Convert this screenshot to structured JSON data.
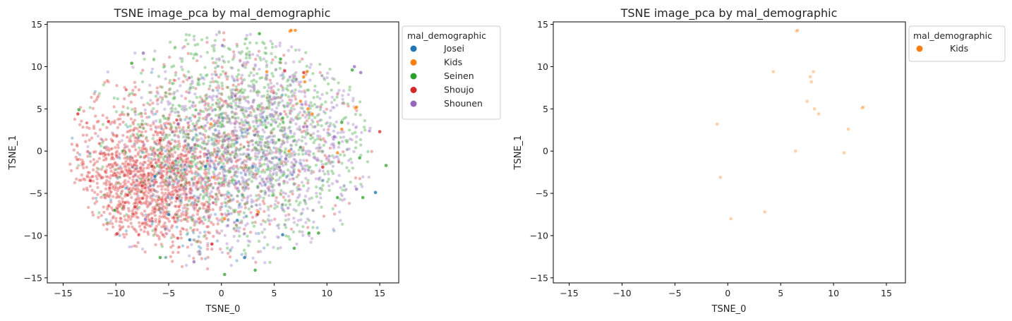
{
  "chart_data": [
    {
      "type": "scatter",
      "title": "TSNE image_pca by mal_demographic",
      "xlabel": "TSNE_0",
      "ylabel": "TSNE_1",
      "xlim": [
        -16.5,
        16.8
      ],
      "ylim": [
        -15.6,
        15.3
      ],
      "xticks": [
        -15,
        -10,
        -5,
        0,
        5,
        10,
        15
      ],
      "yticks": [
        -15,
        -10,
        -5,
        0,
        5,
        10,
        15
      ],
      "xtick_labels": [
        "−15",
        "−10",
        "−5",
        "0",
        "5",
        "10",
        "15"
      ],
      "ytick_labels": [
        "−15",
        "−10",
        "−5",
        "0",
        "5",
        "10",
        "15"
      ],
      "grid": false,
      "legend": {
        "title": "mal_demographic",
        "placement": "outside-upper-right",
        "entries": [
          {
            "name": "Josei",
            "color": "#1f77b4"
          },
          {
            "name": "Kids",
            "color": "#ff7f0e"
          },
          {
            "name": "Seinen",
            "color": "#2ca02c"
          },
          {
            "name": "Shoujo",
            "color": "#d62728"
          },
          {
            "name": "Shounen",
            "color": "#9467bd"
          }
        ]
      },
      "series": [
        {
          "name": "Josei",
          "color": "#1f77b4",
          "points": [
            [
              14.6,
              -4.9
            ],
            [
              -5.0,
              -7.5
            ],
            [
              -3.0,
              -10.5
            ],
            [
              2.2,
              -12.6
            ],
            [
              -6.3,
              -3.0
            ],
            [
              1.5,
              -8.2
            ],
            [
              5.8,
              -9.9
            ],
            [
              -1.5,
              -1.8
            ]
          ]
        },
        {
          "name": "Kids",
          "color": "#ff7f0e",
          "points": [
            [
              6.5,
              14.2
            ],
            [
              6.6,
              14.3
            ],
            [
              7.0,
              14.3
            ],
            [
              4.3,
              9.4
            ],
            [
              7.8,
              8.8
            ],
            [
              7.9,
              8.2
            ],
            [
              8.1,
              9.4
            ],
            [
              7.5,
              5.9
            ],
            [
              8.2,
              5.0
            ],
            [
              12.7,
              5.1
            ],
            [
              12.8,
              5.2
            ],
            [
              8.6,
              4.4
            ],
            [
              11.4,
              2.6
            ],
            [
              -1.0,
              3.2
            ],
            [
              6.4,
              0.0
            ],
            [
              11.0,
              -0.2
            ],
            [
              -0.7,
              -3.1
            ],
            [
              3.5,
              -7.2
            ],
            [
              0.3,
              -8.0
            ]
          ]
        },
        {
          "name": "Seinen",
          "color": "#2ca02c",
          "points": [
            [
              3.6,
              13.9
            ],
            [
              -8.5,
              10.4
            ],
            [
              12.4,
              9.6
            ],
            [
              5.6,
              10.9
            ],
            [
              15.6,
              -1.7
            ],
            [
              13.1,
              -0.8
            ],
            [
              11.4,
              3.4
            ],
            [
              -13.5,
              4.9
            ],
            [
              -5.8,
              -12.6
            ],
            [
              3.2,
              -14.1
            ],
            [
              0.3,
              -14.6
            ],
            [
              6.9,
              -11.5
            ],
            [
              9.2,
              -9.7
            ],
            [
              13.4,
              -5.5
            ],
            [
              5.8,
              3.9
            ],
            [
              -10.1,
              -7.0
            ],
            [
              11.0,
              -5.5
            ],
            [
              8.3,
              -9.7
            ]
          ]
        },
        {
          "name": "Shoujo",
          "color": "#d62728",
          "points": [
            [
              -7.5,
              -4.1
            ],
            [
              -8.2,
              -6.6
            ],
            [
              -12.4,
              -3.5
            ],
            [
              -9.9,
              -9.8
            ],
            [
              -5.8,
              1.3
            ],
            [
              -10.7,
              3.5
            ],
            [
              6.0,
              9.5
            ],
            [
              7.8,
              9.3
            ],
            [
              -13.6,
              4.4
            ],
            [
              15.0,
              2.3
            ],
            [
              -0.9,
              -11.0
            ],
            [
              -4.2,
              -5.6
            ],
            [
              3.4,
              -7.5
            ],
            [
              -8.9,
              -5.2
            ],
            [
              -6.6,
              -1.8
            ],
            [
              9.6,
              -1.9
            ]
          ]
        },
        {
          "name": "Shounen",
          "color": "#9467bd",
          "points": [
            [
              5.6,
              4.4
            ],
            [
              10.7,
              1.7
            ],
            [
              12.6,
              10.0
            ],
            [
              13.2,
              9.3
            ],
            [
              1.4,
              -3.8
            ],
            [
              0.1,
              12.5
            ],
            [
              -7.4,
              11.6
            ],
            [
              -2.6,
              -13.1
            ],
            [
              12.8,
              -4.5
            ],
            [
              5.5,
              -1.9
            ],
            [
              6.1,
              -0.9
            ],
            [
              -1.4,
              -0.4
            ],
            [
              -7.2,
              -8.1
            ],
            [
              -4.1,
              3.2
            ],
            [
              8.1,
              2.9
            ]
          ]
        }
      ]
    },
    {
      "type": "scatter",
      "title": "TSNE image_pca by mal_demographic",
      "xlabel": "TSNE_0",
      "ylabel": "TSNE_1",
      "xlim": [
        -16.5,
        16.8
      ],
      "ylim": [
        -15.6,
        15.3
      ],
      "xticks": [
        -15,
        -10,
        -5,
        0,
        5,
        10,
        15
      ],
      "yticks": [
        -15,
        -10,
        -5,
        0,
        5,
        10,
        15
      ],
      "xtick_labels": [
        "−15",
        "−10",
        "−5",
        "0",
        "5",
        "10",
        "15"
      ],
      "ytick_labels": [
        "−15",
        "−10",
        "−5",
        "0",
        "5",
        "10",
        "15"
      ],
      "grid": false,
      "legend": {
        "title": "mal_demographic",
        "placement": "outside-upper-right",
        "entries": [
          {
            "name": "Kids",
            "color": "#ff7f0e"
          }
        ]
      },
      "series": [
        {
          "name": "Kids",
          "color": "#ff7f0e",
          "points": [
            [
              6.5,
              14.2
            ],
            [
              6.6,
              14.3
            ],
            [
              4.3,
              9.4
            ],
            [
              7.8,
              8.8
            ],
            [
              7.9,
              8.2
            ],
            [
              8.1,
              9.4
            ],
            [
              7.5,
              5.9
            ],
            [
              8.2,
              5.0
            ],
            [
              12.7,
              5.1
            ],
            [
              12.8,
              5.2
            ],
            [
              8.6,
              4.4
            ],
            [
              11.4,
              2.6
            ],
            [
              -1.0,
              3.2
            ],
            [
              6.4,
              0.0
            ],
            [
              11.0,
              -0.2
            ],
            [
              -0.7,
              -3.1
            ],
            [
              3.5,
              -7.2
            ],
            [
              0.3,
              -8.0
            ]
          ]
        }
      ]
    }
  ]
}
